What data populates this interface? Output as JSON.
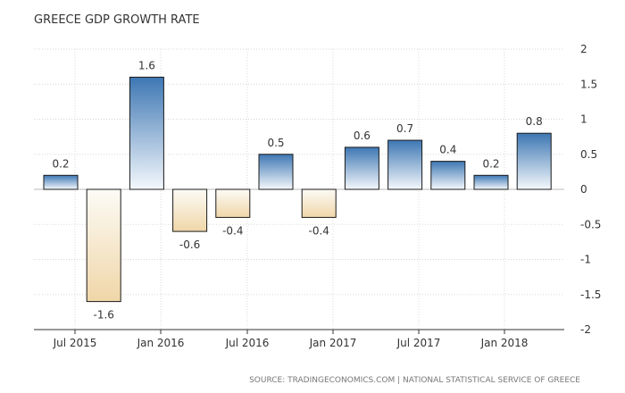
{
  "colors": {
    "positive_top": "#3e77b3",
    "positive_bottom": "#f4f8fc",
    "negative_top": "#fcfbf6",
    "negative_bottom": "#f0d6a8",
    "grid": "#d8d8d8",
    "axis": "#333333",
    "bar_stroke": "#1a1a1a"
  },
  "chart_data": {
    "type": "bar",
    "title": "GREECE GDP GROWTH RATE",
    "source": "SOURCE: TRADINGECONOMICS.COM | NATIONAL STATISTICAL SERVICE OF GREECE",
    "categories": [
      "2015 Q2",
      "2015 Q3",
      "2015 Q4",
      "2016 Q1",
      "2016 Q2",
      "2016 Q3",
      "2016 Q4",
      "2017 Q1",
      "2017 Q2",
      "2017 Q3",
      "2017 Q4",
      "2018 Q1"
    ],
    "values": [
      0.2,
      -1.6,
      1.6,
      -0.6,
      -0.4,
      0.5,
      -0.4,
      0.6,
      0.7,
      0.4,
      0.2,
      0.8
    ],
    "value_labels": [
      "0.2",
      "-1.6",
      "1.6",
      "-0.6",
      "-0.4",
      "0.5",
      "-0.4",
      "0.6",
      "0.7",
      "0.4",
      "0.2",
      "0.8"
    ],
    "x_tick_labels": [
      "Jul 2015",
      "Jan 2016",
      "Jul 2016",
      "Jan 2017",
      "Jul 2017",
      "Jan 2018"
    ],
    "y_ticks": [
      2,
      1.5,
      1,
      0.5,
      0,
      -0.5,
      -1,
      -1.5,
      -2
    ],
    "y_tick_labels": [
      "2",
      "1.5",
      "1",
      "0.5",
      "0",
      "-0.5",
      "-1",
      "-1.5",
      "-2"
    ],
    "ylim": [
      -2,
      2
    ],
    "grid": true,
    "y_axis_position": "right"
  }
}
